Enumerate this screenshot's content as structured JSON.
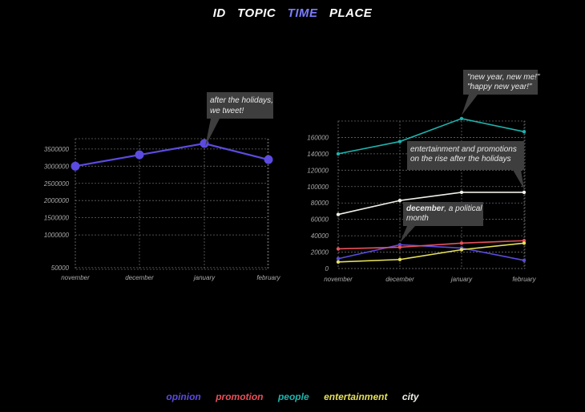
{
  "nav": {
    "items": [
      {
        "label": "ID",
        "active": false
      },
      {
        "label": "TOPIC",
        "active": false
      },
      {
        "label": "TIME",
        "active": true
      },
      {
        "label": "PLACE",
        "active": false
      }
    ]
  },
  "chart_data": [
    {
      "type": "line",
      "categories": [
        "november",
        "december",
        "january",
        "february"
      ],
      "series": [
        {
          "values": [
            3000000,
            3330000,
            3660000,
            3190000
          ],
          "color": "#5b4be0"
        }
      ],
      "yticks": [
        50000,
        1000000,
        1500000,
        2000000,
        2500000,
        3000000,
        3500000
      ],
      "ytick_labels": [
        "50000",
        "1000000",
        "1500000",
        "2000000",
        "2500000",
        "3000000",
        "3500000"
      ],
      "grid": true,
      "annotations": [
        {
          "at": "january",
          "lines": [
            "after the holidays,",
            "we tweet!"
          ]
        }
      ]
    },
    {
      "type": "line",
      "categories": [
        "november",
        "december",
        "january",
        "february"
      ],
      "series": [
        {
          "name": "opinion",
          "values": [
            12000,
            29000,
            25000,
            10000
          ],
          "color": "#5b4be0"
        },
        {
          "name": "promotion",
          "values": [
            24000,
            26000,
            31000,
            34000
          ],
          "color": "#e8515a"
        },
        {
          "name": "people",
          "values": [
            140000,
            155000,
            183000,
            167000
          ],
          "color": "#1fb3ad"
        },
        {
          "name": "entertainment",
          "values": [
            8000,
            11000,
            23000,
            31000
          ],
          "color": "#e6e05a"
        },
        {
          "name": "city",
          "values": [
            66000,
            83000,
            93000,
            93000
          ],
          "color": "#f0f0e8"
        }
      ],
      "yticks": [
        0,
        20000,
        40000,
        60000,
        80000,
        100000,
        120000,
        140000,
        160000
      ],
      "ytick_labels": [
        "0",
        "20000",
        "40000",
        "60000",
        "80000",
        "100000",
        "120000",
        "140000",
        "160000"
      ],
      "grid": true,
      "annotations": [
        {
          "at": "january",
          "lines": [
            "\"new year, new me!\"",
            "\"happy new year!\""
          ]
        },
        {
          "at": "february",
          "lines": [
            "entertainment and promotions",
            "on the rise after the holidays"
          ]
        },
        {
          "at": "december",
          "lines": [
            "december, a political",
            "month"
          ]
        }
      ]
    }
  ],
  "legend": {
    "items": [
      {
        "label": "opinion",
        "color": "#5b4be0"
      },
      {
        "label": "promotion",
        "color": "#e8515a"
      },
      {
        "label": "people",
        "color": "#1fb3ad"
      },
      {
        "label": "entertainment",
        "color": "#e6e05a"
      },
      {
        "label": "city",
        "color": "#f0f0e8"
      }
    ]
  }
}
